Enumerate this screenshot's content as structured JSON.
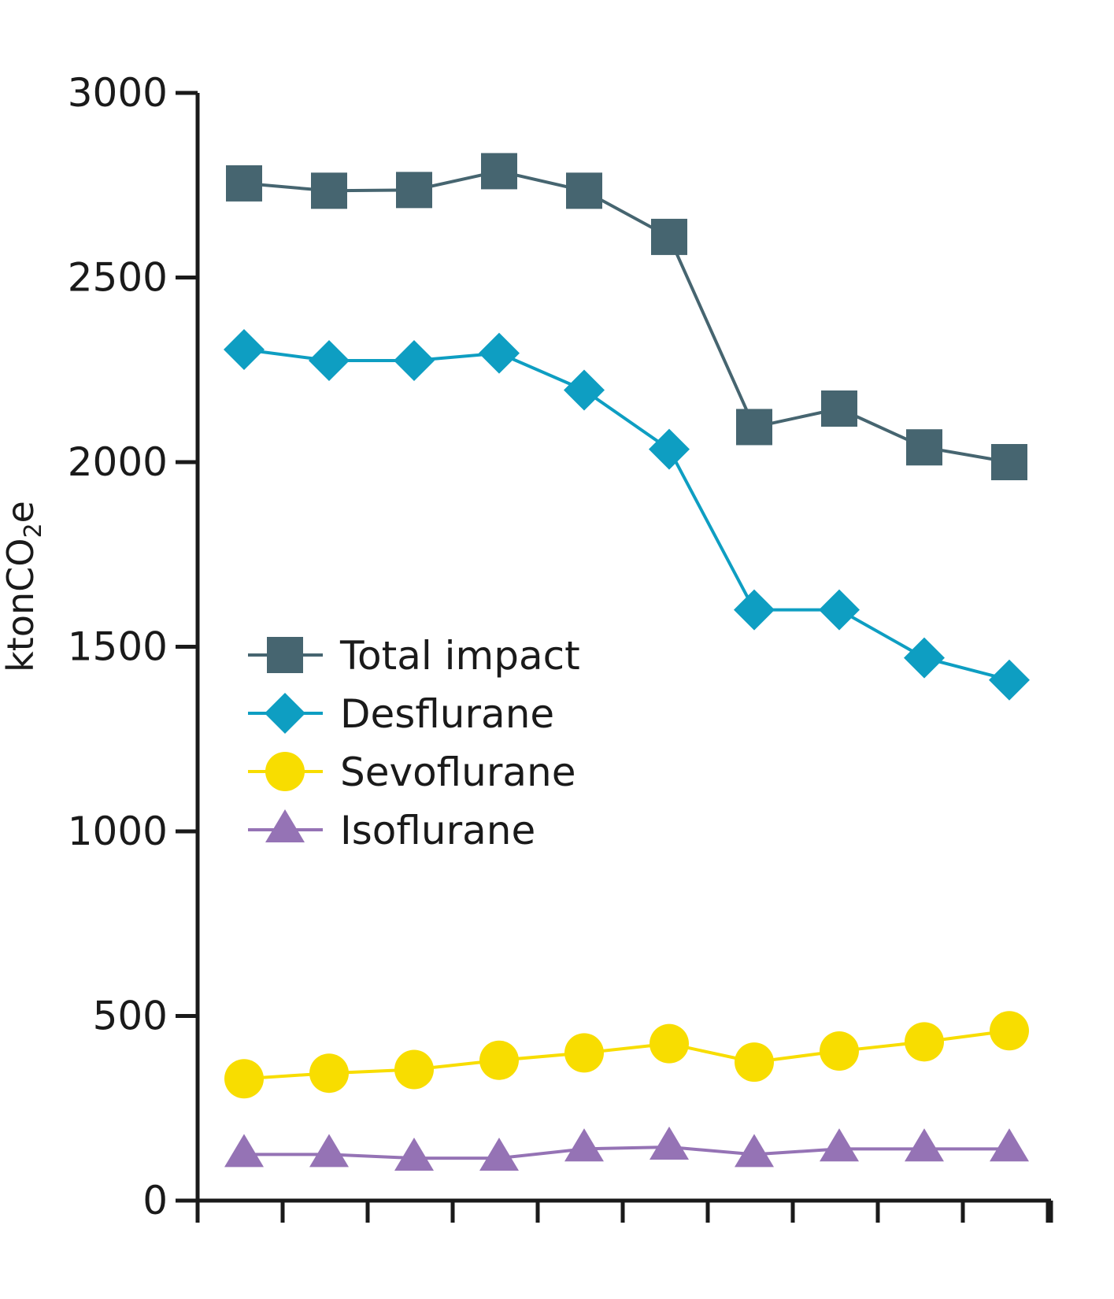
{
  "chart_data": {
    "type": "line",
    "title": "",
    "xlabel": "",
    "ylabel": "ktonCO2e",
    "ylabel_main": "ktonCO",
    "ylabel_sub": "2",
    "ylabel_tail": "e",
    "ylim": [
      0,
      3000
    ],
    "yticks": [
      "0",
      "500",
      "1000",
      "1500",
      "2000",
      "2500",
      "3000"
    ],
    "x_count": 10,
    "grid": false,
    "legend_position": "center-left",
    "series": [
      {
        "name": "Total impact",
        "marker": "square",
        "color": "#466570",
        "values": [
          2755,
          2735,
          2737,
          2788,
          2735,
          2610,
          2095,
          2145,
          2040,
          2000
        ]
      },
      {
        "name": "Desflurane",
        "marker": "diamond",
        "color": "#0e9ec2",
        "values": [
          2305,
          2275,
          2275,
          2295,
          2195,
          2035,
          1600,
          1600,
          1470,
          1410
        ]
      },
      {
        "name": "Sevoflurane",
        "marker": "circle",
        "color": "#f8dd00",
        "values": [
          330,
          345,
          355,
          380,
          400,
          425,
          375,
          405,
          430,
          460
        ]
      },
      {
        "name": "Isoflurane",
        "marker": "triangle",
        "color": "#9573b5",
        "values": [
          125,
          125,
          115,
          115,
          140,
          145,
          125,
          140,
          140,
          140
        ]
      }
    ]
  }
}
